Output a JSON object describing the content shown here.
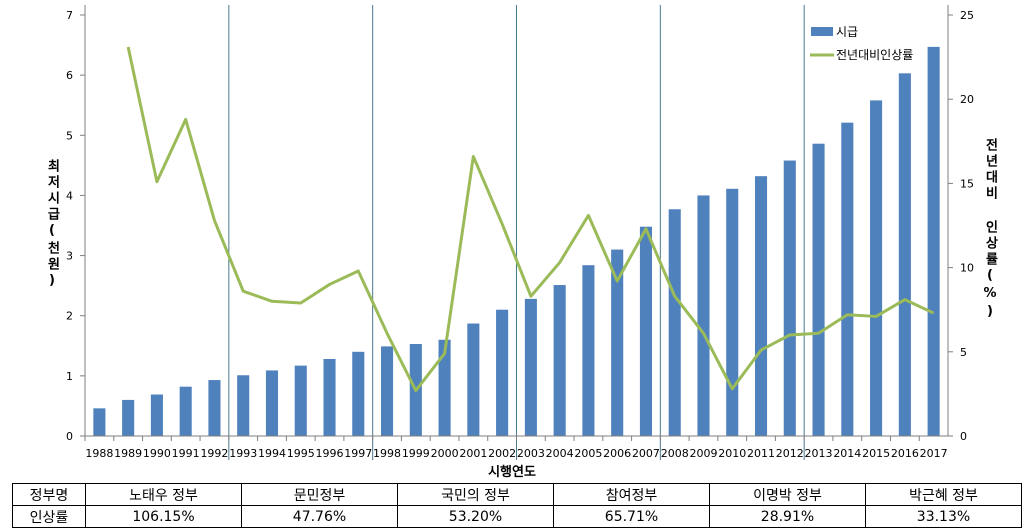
{
  "chart_data": {
    "type": "bar+line",
    "xlabel": "시행연도",
    "ylabel_left": "최저시급(천원)",
    "ylabel_right": "전년대비 인상률(%)",
    "ylim_left": [
      0,
      7
    ],
    "yticks_left": [
      0,
      1,
      2,
      3,
      4,
      5,
      6,
      7
    ],
    "ylim_right": [
      0,
      25
    ],
    "yticks_right": [
      0,
      5,
      10,
      15,
      20,
      25
    ],
    "legend_position": "top-right",
    "categories": [
      "1988",
      "1989",
      "1990",
      "1991",
      "1992",
      "1993",
      "1994",
      "1995",
      "1996",
      "1997",
      "1998",
      "1999",
      "2000",
      "2001",
      "2002",
      "2003",
      "2004",
      "2005",
      "2006",
      "2007",
      "2008",
      "2009",
      "2010",
      "2011",
      "2012",
      "2013",
      "2014",
      "2015",
      "2016",
      "2017"
    ],
    "series": [
      {
        "name": "시급",
        "type": "bar",
        "axis": "left",
        "color": "#4F81BD",
        "values": [
          0.46,
          0.6,
          0.69,
          0.82,
          0.93,
          1.01,
          1.09,
          1.17,
          1.28,
          1.4,
          1.49,
          1.53,
          1.6,
          1.87,
          2.1,
          2.28,
          2.51,
          2.84,
          3.1,
          3.48,
          3.77,
          4.0,
          4.11,
          4.32,
          4.58,
          4.86,
          5.21,
          5.58,
          6.03,
          6.47
        ]
      },
      {
        "name": "전년대비인상률",
        "type": "line",
        "axis": "right",
        "color": "#9BBB59",
        "values": [
          null,
          23.1,
          15.1,
          18.8,
          12.8,
          8.6,
          8.0,
          7.9,
          9.0,
          9.8,
          6.1,
          2.7,
          4.9,
          16.6,
          12.6,
          8.3,
          10.3,
          13.1,
          9.2,
          12.3,
          8.3,
          6.1,
          2.8,
          5.1,
          6.0,
          6.1,
          7.2,
          7.1,
          8.1,
          7.3
        ]
      }
    ],
    "period_dividers_after": [
      "1992",
      "1997",
      "2002",
      "2007",
      "2012"
    ]
  },
  "table": {
    "header_row_label": "정부명",
    "value_row_label": "인상률",
    "governments": [
      {
        "name": "노태우 정부",
        "rate": "106.15%"
      },
      {
        "name": "문민정부",
        "rate": "47.76%"
      },
      {
        "name": "국민의 정부",
        "rate": "53.20%"
      },
      {
        "name": "참여정부",
        "rate": "65.71%"
      },
      {
        "name": "이명박 정부",
        "rate": "28.91%"
      },
      {
        "name": "박근혜 정부",
        "rate": "33.13%"
      }
    ]
  }
}
